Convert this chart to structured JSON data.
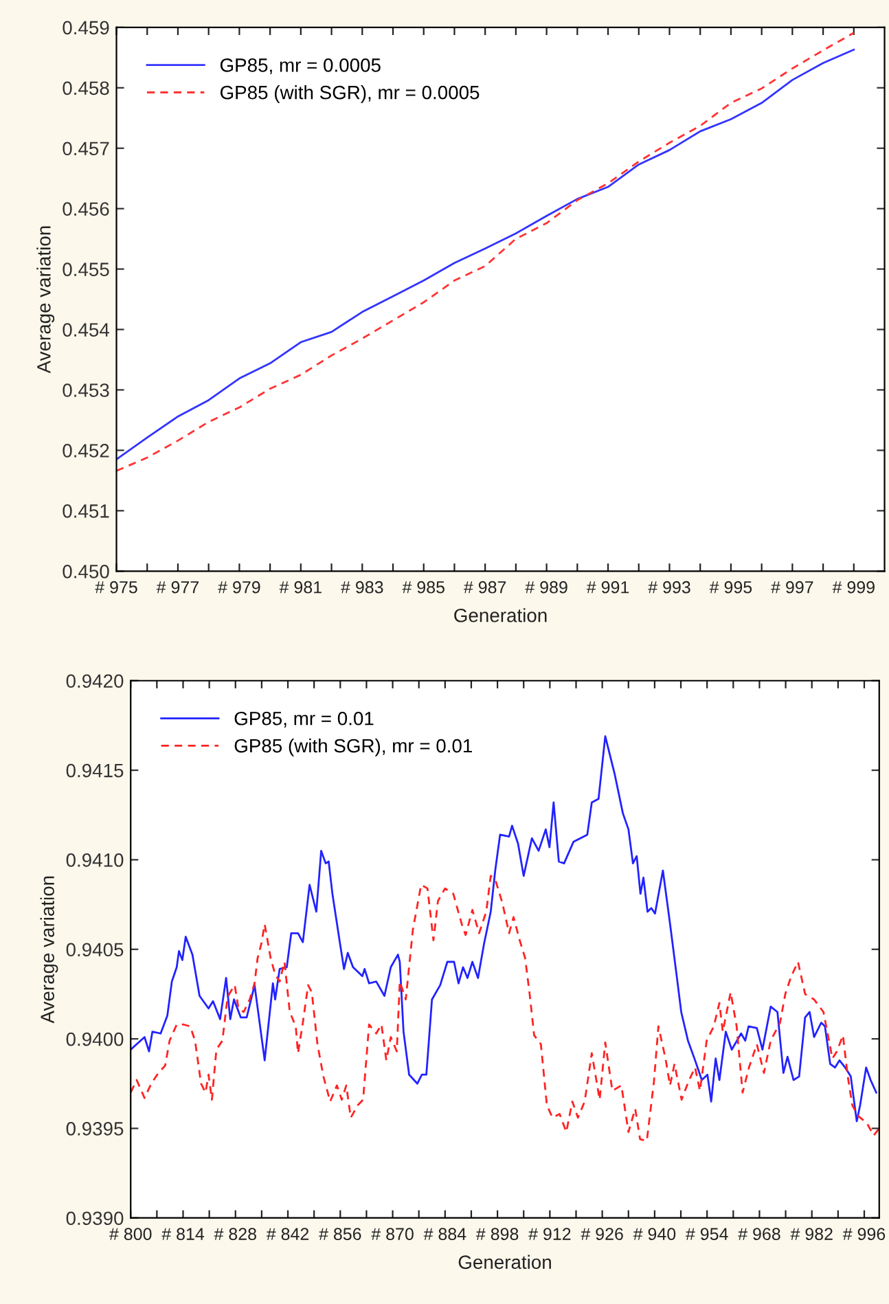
{
  "chart_data": [
    {
      "type": "line",
      "xlabel": "Generation",
      "ylabel": "Average variation",
      "legend": "top left",
      "grid": false,
      "xlim": [
        975,
        1000
      ],
      "ylim": [
        0.45,
        0.459
      ],
      "xticks": [
        {
          "value": 975,
          "label": "# 975"
        },
        {
          "value": 976,
          "label": null
        },
        {
          "value": 977,
          "label": "# 977"
        },
        {
          "value": 978,
          "label": null
        },
        {
          "value": 979,
          "label": "# 979"
        },
        {
          "value": 980,
          "label": null
        },
        {
          "value": 981,
          "label": "# 981"
        },
        {
          "value": 982,
          "label": null
        },
        {
          "value": 983,
          "label": "# 983"
        },
        {
          "value": 984,
          "label": null
        },
        {
          "value": 985,
          "label": "# 985"
        },
        {
          "value": 986,
          "label": null
        },
        {
          "value": 987,
          "label": "# 987"
        },
        {
          "value": 988,
          "label": null
        },
        {
          "value": 989,
          "label": "# 989"
        },
        {
          "value": 990,
          "label": null
        },
        {
          "value": 991,
          "label": "# 991"
        },
        {
          "value": 992,
          "label": null
        },
        {
          "value": 993,
          "label": "# 993"
        },
        {
          "value": 994,
          "label": null
        },
        {
          "value": 995,
          "label": "# 995"
        },
        {
          "value": 996,
          "label": null
        },
        {
          "value": 997,
          "label": "# 997"
        },
        {
          "value": 998,
          "label": null
        },
        {
          "value": 999,
          "label": "# 999"
        }
      ],
      "yticks": [
        {
          "value": 0.45,
          "label": "0.450"
        },
        {
          "value": 0.451,
          "label": "0.451"
        },
        {
          "value": 0.452,
          "label": "0.452"
        },
        {
          "value": 0.453,
          "label": "0.453"
        },
        {
          "value": 0.454,
          "label": "0.454"
        },
        {
          "value": 0.455,
          "label": "0.455"
        },
        {
          "value": 0.456,
          "label": "0.456"
        },
        {
          "value": 0.457,
          "label": "0.457"
        },
        {
          "value": 0.458,
          "label": "0.458"
        },
        {
          "value": 0.459,
          "label": "0.459"
        }
      ],
      "x": [
        975,
        976,
        977,
        978,
        979,
        980,
        981,
        982,
        983,
        984,
        985,
        986,
        987,
        988,
        989,
        990,
        991,
        992,
        993,
        994,
        995,
        996,
        997,
        998,
        999
      ],
      "series": [
        {
          "name": "GP85, mr = 0.0005",
          "color": "#3333ff",
          "line_style": "solid",
          "values": [
            0.45185,
            0.45221,
            0.45256,
            0.45283,
            0.45319,
            0.45344,
            0.45379,
            0.45396,
            0.45429,
            0.45455,
            0.45481,
            0.4551,
            0.45534,
            0.45559,
            0.45588,
            0.45616,
            0.45636,
            0.45673,
            0.45697,
            0.45728,
            0.45748,
            0.45775,
            0.45813,
            0.45841,
            0.45863
          ]
        },
        {
          "name": "GP85 (with SGR), mr = 0.0005",
          "color": "#ff3333",
          "line_style": "dashed",
          "values": [
            0.45166,
            0.45188,
            0.45216,
            0.45247,
            0.45271,
            0.45302,
            0.45325,
            0.45357,
            0.45385,
            0.45415,
            0.45445,
            0.45481,
            0.45505,
            0.4555,
            0.45576,
            0.45614,
            0.45642,
            0.45678,
            0.45709,
            0.45737,
            0.45775,
            0.45799,
            0.45832,
            0.45862,
            0.45891
          ]
        }
      ]
    },
    {
      "type": "line",
      "xlabel": "Generation",
      "ylabel": "Average variation",
      "legend": "top left",
      "grid": false,
      "xlim": [
        800,
        1000
      ],
      "ylim": [
        0.939,
        0.942
      ],
      "xticks": [
        {
          "value": 800,
          "label": "# 800"
        },
        {
          "value": 807,
          "label": null
        },
        {
          "value": 814,
          "label": "# 814"
        },
        {
          "value": 821,
          "label": null
        },
        {
          "value": 828,
          "label": "# 828"
        },
        {
          "value": 835,
          "label": null
        },
        {
          "value": 842,
          "label": "# 842"
        },
        {
          "value": 849,
          "label": null
        },
        {
          "value": 856,
          "label": "# 856"
        },
        {
          "value": 863,
          "label": null
        },
        {
          "value": 870,
          "label": "# 870"
        },
        {
          "value": 877,
          "label": null
        },
        {
          "value": 884,
          "label": "# 884"
        },
        {
          "value": 891,
          "label": null
        },
        {
          "value": 898,
          "label": "# 898"
        },
        {
          "value": 905,
          "label": null
        },
        {
          "value": 912,
          "label": "# 912"
        },
        {
          "value": 919,
          "label": null
        },
        {
          "value": 926,
          "label": "# 926"
        },
        {
          "value": 933,
          "label": null
        },
        {
          "value": 940,
          "label": "# 940"
        },
        {
          "value": 947,
          "label": null
        },
        {
          "value": 954,
          "label": "# 954"
        },
        {
          "value": 961,
          "label": null
        },
        {
          "value": 968,
          "label": "# 968"
        },
        {
          "value": 975,
          "label": null
        },
        {
          "value": 982,
          "label": "# 982"
        },
        {
          "value": 989,
          "label": null
        },
        {
          "value": 996,
          "label": "# 996"
        }
      ],
      "yticks": [
        {
          "value": 0.939,
          "label": "0.9390"
        },
        {
          "value": 0.9395,
          "label": "0.9395"
        },
        {
          "value": 0.94,
          "label": "0.9400"
        },
        {
          "value": 0.9405,
          "label": "0.9405"
        },
        {
          "value": 0.941,
          "label": "0.9410"
        },
        {
          "value": 0.9415,
          "label": "0.9415"
        },
        {
          "value": 0.942,
          "label": "0.9420"
        }
      ],
      "series": [
        {
          "name": "GP85, mr = 0.01",
          "color": "#2222ff",
          "line_style": "solid",
          "x": [
            800,
            803.7,
            804.9,
            805.8,
            808,
            809.8,
            811,
            812.3,
            812.9,
            813.8,
            814.7,
            816.5,
            818.4,
            820.8,
            822,
            823.9,
            825.5,
            826.6,
            827.6,
            829.4,
            831,
            833.1,
            835.8,
            838,
            838.6,
            839.8,
            841.7,
            842.9,
            844.7,
            846,
            847.8,
            849.6,
            850.9,
            852.1,
            852.9,
            853.9,
            855.8,
            857,
            858,
            859.4,
            861.9,
            862.5,
            863.7,
            865.6,
            867.8,
            869.5,
            871.4,
            871.9,
            872.9,
            874.4,
            876.6,
            877.8,
            879,
            880.5,
            882.7,
            884.6,
            886.4,
            887.6,
            888.8,
            890,
            891.3,
            892.8,
            894.4,
            896.2,
            897.4,
            898.7,
            901.1,
            901.9,
            903.5,
            905,
            907.2,
            909,
            910.9,
            911.9,
            913,
            914.4,
            915.8,
            918.3,
            922,
            923.2,
            925,
            926.8,
            929.3,
            931.5,
            933,
            934.2,
            935.2,
            936.2,
            937,
            938.1,
            939.1,
            940.1,
            942.2,
            944,
            945.9,
            947.1,
            948.9,
            950.8,
            952.6,
            954.1,
            955.1,
            956.3,
            957.3,
            959,
            960.6,
            963.1,
            964.2,
            965.1,
            967.3,
            968.8,
            971,
            972.8,
            974.4,
            975.5,
            977.1,
            978.6,
            980.2,
            981.4,
            982.6,
            984.5,
            985.5,
            986.9,
            988.2,
            989.4,
            990.9,
            992.4,
            994,
            994.9,
            996.5,
            997.7,
            999.2
          ],
          "values": [
            0.93994,
            0.94001,
            0.93993,
            0.94004,
            0.94003,
            0.94013,
            0.94032,
            0.9404,
            0.94049,
            0.94044,
            0.94057,
            0.94047,
            0.94024,
            0.94017,
            0.94021,
            0.94011,
            0.94034,
            0.94011,
            0.94022,
            0.94012,
            0.94012,
            0.9403,
            0.93988,
            0.94031,
            0.94022,
            0.94039,
            0.9404,
            0.94059,
            0.94059,
            0.94054,
            0.94086,
            0.94071,
            0.94105,
            0.94098,
            0.94099,
            0.94081,
            0.94055,
            0.94039,
            0.94048,
            0.9404,
            0.94035,
            0.94039,
            0.94031,
            0.94032,
            0.94024,
            0.9404,
            0.94047,
            0.94043,
            0.94004,
            0.9398,
            0.93975,
            0.9398,
            0.9398,
            0.94022,
            0.9403,
            0.94043,
            0.94043,
            0.94031,
            0.9404,
            0.94034,
            0.94043,
            0.94034,
            0.94053,
            0.94071,
            0.94094,
            0.94114,
            0.94113,
            0.94119,
            0.94109,
            0.94091,
            0.94112,
            0.94105,
            0.94117,
            0.94107,
            0.94132,
            0.94099,
            0.94098,
            0.9411,
            0.94114,
            0.94132,
            0.94134,
            0.94169,
            0.94148,
            0.94126,
            0.94117,
            0.94098,
            0.94102,
            0.94081,
            0.9409,
            0.94071,
            0.94073,
            0.9407,
            0.94094,
            0.94066,
            0.94035,
            0.94015,
            0.93999,
            0.93988,
            0.93977,
            0.9398,
            0.93965,
            0.93989,
            0.93977,
            0.94004,
            0.93994,
            0.94003,
            0.93999,
            0.94007,
            0.94006,
            0.93994,
            0.94018,
            0.94015,
            0.93981,
            0.9399,
            0.93977,
            0.93979,
            0.94012,
            0.94015,
            0.94001,
            0.94009,
            0.94007,
            0.93986,
            0.93984,
            0.93988,
            0.93984,
            0.93979,
            0.93954,
            0.93963,
            0.93984,
            0.93977,
            0.9397
          ]
        },
        {
          "name": "GP85 (with SGR), mr = 0.01",
          "color": "#ff2222",
          "line_style": "dashed",
          "x": [
            800,
            801.6,
            803.7,
            805.5,
            807.4,
            809.2,
            810.4,
            812.3,
            814.1,
            815.9,
            817.2,
            818.8,
            820,
            820.8,
            821.7,
            822.9,
            824.5,
            825.7,
            826.3,
            827.8,
            828.8,
            830.2,
            831.8,
            833.1,
            833.9,
            834.9,
            835.8,
            837.4,
            838.6,
            839.8,
            841.1,
            842.5,
            844.1,
            844.7,
            846,
            847.4,
            848.4,
            849.9,
            851.5,
            853.3,
            855.1,
            856.4,
            857.6,
            858.8,
            860.7,
            862.1,
            863.7,
            865.6,
            867,
            868.3,
            869.5,
            871.1,
            871.9,
            873.5,
            875.4,
            877.6,
            879.3,
            880.9,
            882.1,
            884,
            886.2,
            888.6,
            889.5,
            891.3,
            893.1,
            895,
            896.2,
            897.4,
            899.3,
            901.1,
            902.3,
            903.8,
            905.4,
            906.6,
            907.8,
            909.6,
            911.2,
            912.7,
            914.6,
            916.4,
            918,
            919.5,
            921.3,
            923.2,
            925.3,
            926.8,
            928.7,
            931.1,
            933,
            934.8,
            936.1,
            937.9,
            939.8,
            941,
            942.9,
            944.1,
            945.3,
            947.2,
            949,
            950.8,
            952.1,
            953.9,
            955.8,
            957.3,
            958.2,
            960.3,
            961.9,
            963.5,
            965.2,
            967.3,
            969.2,
            971,
            973.5,
            974.9,
            976.5,
            978.3,
            980.2,
            982.6,
            985.1,
            986.3,
            987.5,
            988.7,
            990.3,
            991.6,
            992.8,
            994.3,
            996.7,
            998.5,
            1000
          ],
          "values": [
            0.9397,
            0.93977,
            0.93967,
            0.93975,
            0.93981,
            0.93985,
            0.93999,
            0.94008,
            0.94008,
            0.94007,
            0.93999,
            0.93975,
            0.9397,
            0.9398,
            0.93966,
            0.93994,
            0.93999,
            0.9402,
            0.94025,
            0.9403,
            0.94017,
            0.94015,
            0.94022,
            0.94031,
            0.94045,
            0.94053,
            0.94064,
            0.94045,
            0.94036,
            0.94032,
            0.94043,
            0.94015,
            0.94007,
            0.93992,
            0.94009,
            0.9403,
            0.94026,
            0.93997,
            0.93979,
            0.93965,
            0.93974,
            0.93966,
            0.93974,
            0.93956,
            0.93963,
            0.93966,
            0.94008,
            0.94003,
            0.94008,
            0.93988,
            0.94001,
            0.93993,
            0.94032,
            0.94022,
            0.94061,
            0.94086,
            0.94084,
            0.94055,
            0.94077,
            0.94084,
            0.94081,
            0.94063,
            0.94058,
            0.94072,
            0.94059,
            0.94071,
            0.94091,
            0.94089,
            0.94076,
            0.94059,
            0.94068,
            0.94056,
            0.94045,
            0.94025,
            0.94002,
            0.93997,
            0.93963,
            0.93956,
            0.93958,
            0.93948,
            0.93965,
            0.93956,
            0.93965,
            0.93992,
            0.93966,
            0.93998,
            0.93971,
            0.93974,
            0.93948,
            0.93961,
            0.93944,
            0.93943,
            0.93976,
            0.94007,
            0.93989,
            0.93974,
            0.93986,
            0.93966,
            0.93976,
            0.93984,
            0.93971,
            0.93999,
            0.94007,
            0.9402,
            0.94004,
            0.94026,
            0.94007,
            0.9397,
            0.93984,
            0.93997,
            0.93981,
            0.93999,
            0.94009,
            0.94025,
            0.94035,
            0.94043,
            0.94025,
            0.94022,
            0.94015,
            0.94002,
            0.93989,
            0.93993,
            0.94002,
            0.93979,
            0.93963,
            0.93957,
            0.93953,
            0.93946,
            0.9395
          ]
        }
      ]
    }
  ]
}
